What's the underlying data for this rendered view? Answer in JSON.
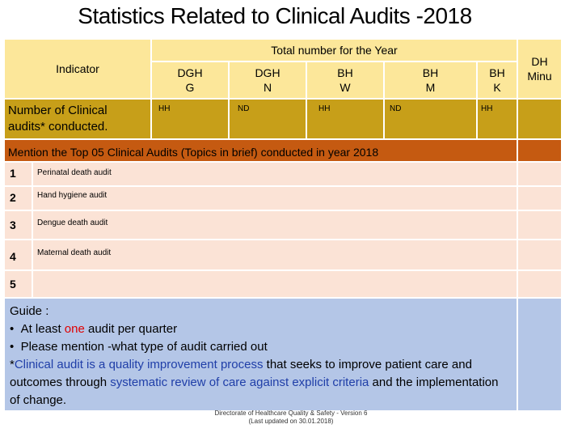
{
  "title": "Statistics Related to Clinical Audits -2018",
  "table": {
    "header_span": "Total number for the Year",
    "indicator_label": "Indicator",
    "row_label": "Number of Clinical audits* conducted.",
    "columns": [
      {
        "name": "DGH G",
        "value": "HH"
      },
      {
        "name": "DGH N",
        "value": "ND"
      },
      {
        "name": "BH W",
        "value": "HH"
      },
      {
        "name": "BH M",
        "value": "ND"
      },
      {
        "name": "BH K",
        "value": "HH"
      },
      {
        "name": "DH Minu",
        "value": ""
      }
    ]
  },
  "audits": {
    "heading": "Mention the Top 05 Clinical Audits (Topics in brief) conducted in year 2018",
    "items": [
      {
        "num": "1",
        "text": "Perinatal death audit"
      },
      {
        "num": "2",
        "text": "Hand hygiene audit"
      },
      {
        "num": "3",
        "text": "Dengue death audit"
      },
      {
        "num": "4",
        "text": "Maternal death audit"
      },
      {
        "num": "5",
        "text": ""
      }
    ]
  },
  "guide": {
    "title": "Guide :",
    "bullet1_a": "At least ",
    "bullet1_b": "one",
    "bullet1_c": " audit per quarter",
    "bullet2": "Please mention -what type of audit carried out",
    "note_a": "*",
    "note_b": "Clinical audit is a quality improvement process",
    "note_c": " that seeks to improve patient care and outcomes through ",
    "note_d": "systematic review of care against explicit criteria",
    "note_e": " and the implementation of change."
  },
  "footer": {
    "line1": "Directorate of Healthcare Quality & Safety - Version 6",
    "line2": "(Last updated on 30.01.2018)"
  },
  "colors": {
    "header_yellow": "#fce79a",
    "label_gold": "#c79f19",
    "heading_orange": "#c55a11",
    "row_pale": "#fbe3d6",
    "guide_blue": "#b4c6e7"
  }
}
